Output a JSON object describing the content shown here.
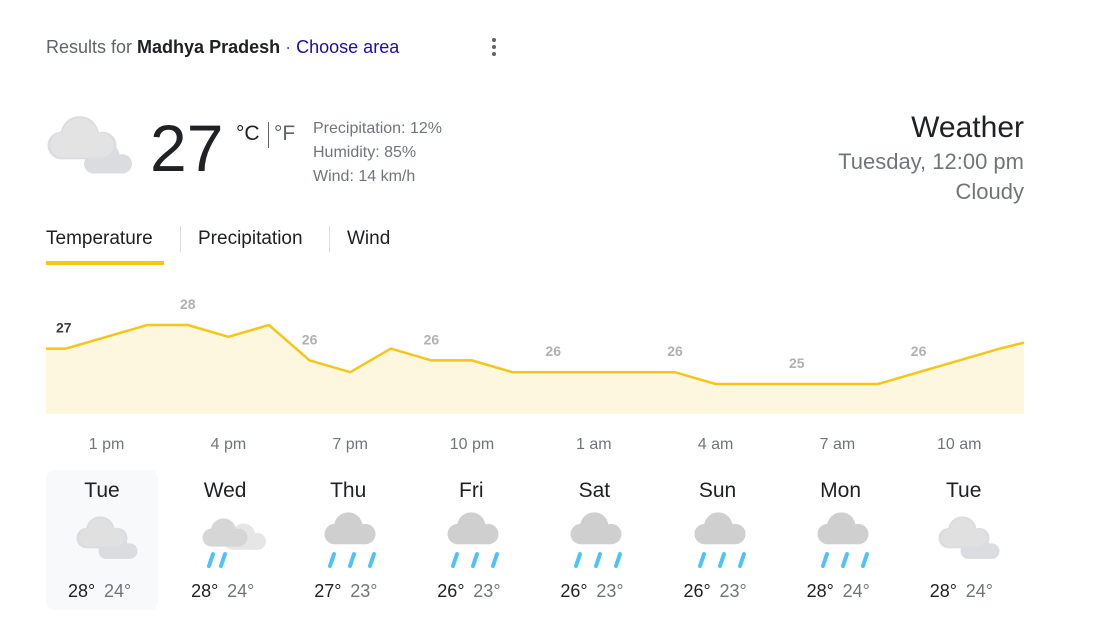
{
  "header": {
    "prefix": "Results for",
    "location": "Madhya Pradesh",
    "separator": "·",
    "link": "Choose area"
  },
  "current": {
    "temperature": "27",
    "unit_c": "°C",
    "unit_f": "°F",
    "precipitation": "Precipitation: 12%",
    "humidity": "Humidity: 85%",
    "wind": "Wind: 14 km/h",
    "title": "Weather",
    "datetime": "Tuesday, 12:00 pm",
    "condition": "Cloudy",
    "icon": "cloudy"
  },
  "tabs": [
    "Temperature",
    "Precipitation",
    "Wind"
  ],
  "active_tab": 0,
  "chart_data": {
    "type": "line",
    "color": "#f5c518",
    "fill": "#fef7e0",
    "categories": [
      null,
      "1 pm",
      null,
      null,
      "4 pm",
      null,
      null,
      "7 pm",
      null,
      null,
      "10 pm",
      null,
      null,
      "1 am",
      null,
      null,
      "4 am",
      null,
      null,
      "7 am",
      null,
      null,
      "10 am",
      null
    ],
    "values": [
      26.8,
      27.4,
      28,
      28,
      27.4,
      28,
      26.2,
      25.6,
      26.8,
      26.2,
      26.2,
      25.6,
      25.6,
      25.6,
      25.6,
      25.6,
      25,
      25,
      25,
      25,
      25,
      25.6,
      26.2,
      26.8
    ],
    "value_labels": [
      "27",
      null,
      null,
      "28",
      null,
      null,
      "26",
      null,
      null,
      "26",
      null,
      null,
      "26",
      null,
      null,
      "26",
      null,
      null,
      "25",
      null,
      null,
      "26",
      null,
      null
    ],
    "ylim": [
      25,
      28
    ]
  },
  "forecast": [
    {
      "day": "Tue",
      "high": "28°",
      "low": "24°",
      "icon": "cloudy"
    },
    {
      "day": "Wed",
      "high": "28°",
      "low": "24°",
      "icon": "partly-rain"
    },
    {
      "day": "Thu",
      "high": "27°",
      "low": "23°",
      "icon": "rain"
    },
    {
      "day": "Fri",
      "high": "26°",
      "low": "23°",
      "icon": "rain"
    },
    {
      "day": "Sat",
      "high": "26°",
      "low": "23°",
      "icon": "rain"
    },
    {
      "day": "Sun",
      "high": "26°",
      "low": "23°",
      "icon": "rain"
    },
    {
      "day": "Mon",
      "high": "28°",
      "low": "24°",
      "icon": "rain"
    },
    {
      "day": "Tue",
      "high": "28°",
      "low": "24°",
      "icon": "cloudy"
    }
  ]
}
